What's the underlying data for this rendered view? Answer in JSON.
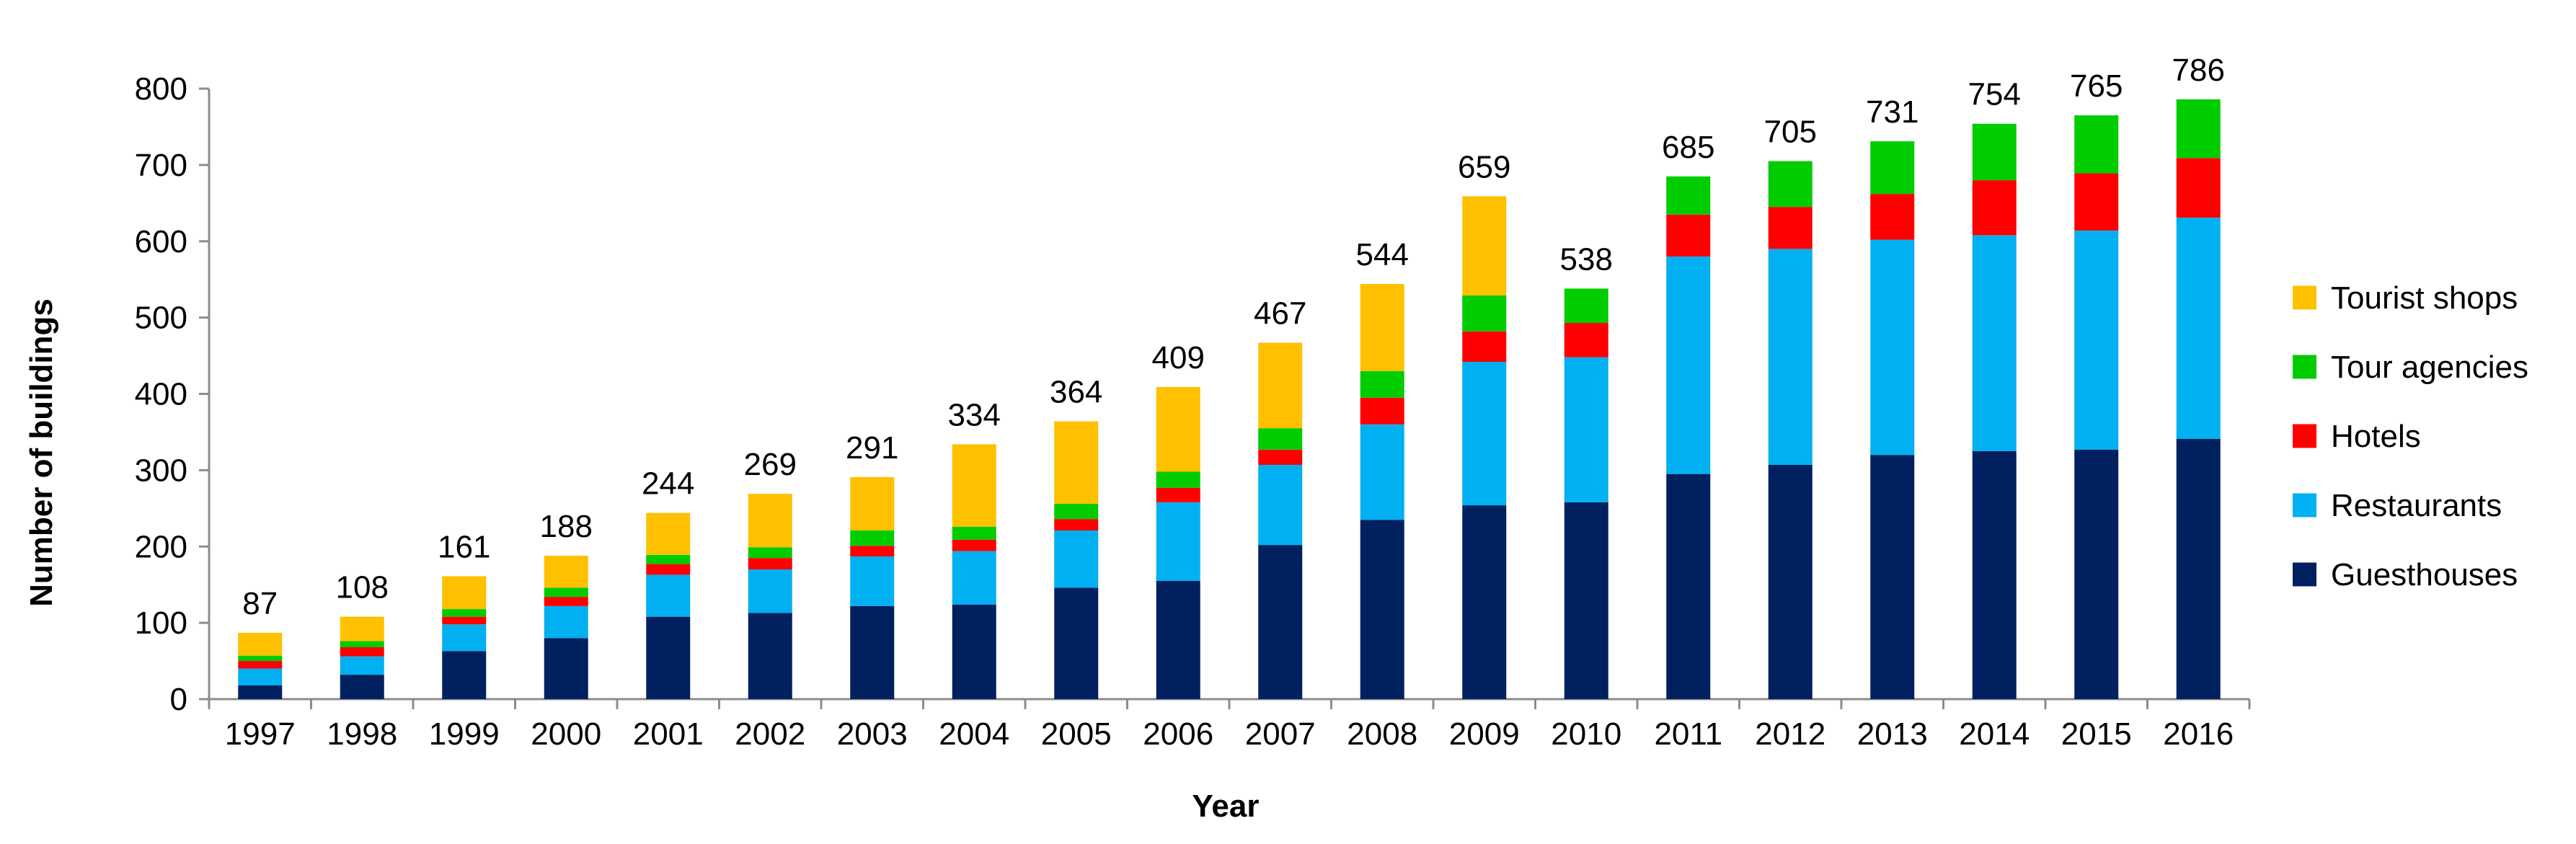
{
  "chart_data": {
    "type": "bar",
    "stacked": true,
    "categories": [
      "1997",
      "1998",
      "1999",
      "2000",
      "2001",
      "2002",
      "2003",
      "2004",
      "2005",
      "2006",
      "2007",
      "2008",
      "2009",
      "2010",
      "2011",
      "2012",
      "2013",
      "2014",
      "2015",
      "2016"
    ],
    "series": [
      {
        "name": "Guesthouses",
        "color": "#002060",
        "values": [
          18,
          32,
          63,
          80,
          108,
          113,
          122,
          124,
          146,
          155,
          202,
          235,
          254,
          258,
          295,
          307,
          320,
          325,
          327,
          341
        ]
      },
      {
        "name": "Restaurants",
        "color": "#00B0F0",
        "values": [
          22,
          24,
          35,
          42,
          55,
          57,
          65,
          70,
          75,
          103,
          105,
          125,
          188,
          190,
          285,
          283,
          282,
          283,
          287,
          290
        ]
      },
      {
        "name": "Hotels",
        "color": "#FF0000",
        "values": [
          10,
          12,
          10,
          12,
          14,
          15,
          14,
          15,
          15,
          19,
          20,
          35,
          40,
          45,
          55,
          55,
          60,
          72,
          75,
          78
        ]
      },
      {
        "name": "Tour agencies",
        "color": "#00CC00",
        "values": [
          7,
          8,
          10,
          12,
          12,
          14,
          20,
          17,
          20,
          21,
          28,
          35,
          47,
          45,
          50,
          60,
          69,
          74,
          76,
          77
        ]
      },
      {
        "name": "Tourist shops",
        "color": "#FFC000",
        "values": [
          30,
          32,
          43,
          42,
          55,
          70,
          70,
          108,
          108,
          111,
          112,
          114,
          130,
          0,
          0,
          0,
          0,
          0,
          0,
          0
        ]
      }
    ],
    "totals": [
      "87",
      "108",
      "161",
      "188",
      "244",
      "269",
      "291",
      "334",
      "364",
      "409",
      "467",
      "544",
      "659",
      "538",
      "685",
      "705",
      "731",
      "754",
      "765",
      "786"
    ],
    "y_ticks": [
      "0",
      "100",
      "200",
      "300",
      "400",
      "500",
      "600",
      "700",
      "800"
    ],
    "ylim": [
      0,
      800
    ],
    "xlabel": "Year",
    "ylabel": "Number of buildings",
    "legend_order": [
      "Tourist shops",
      "Tour agencies",
      "Hotels",
      "Restaurants",
      "Guesthouses"
    ],
    "legend_position": "right"
  }
}
